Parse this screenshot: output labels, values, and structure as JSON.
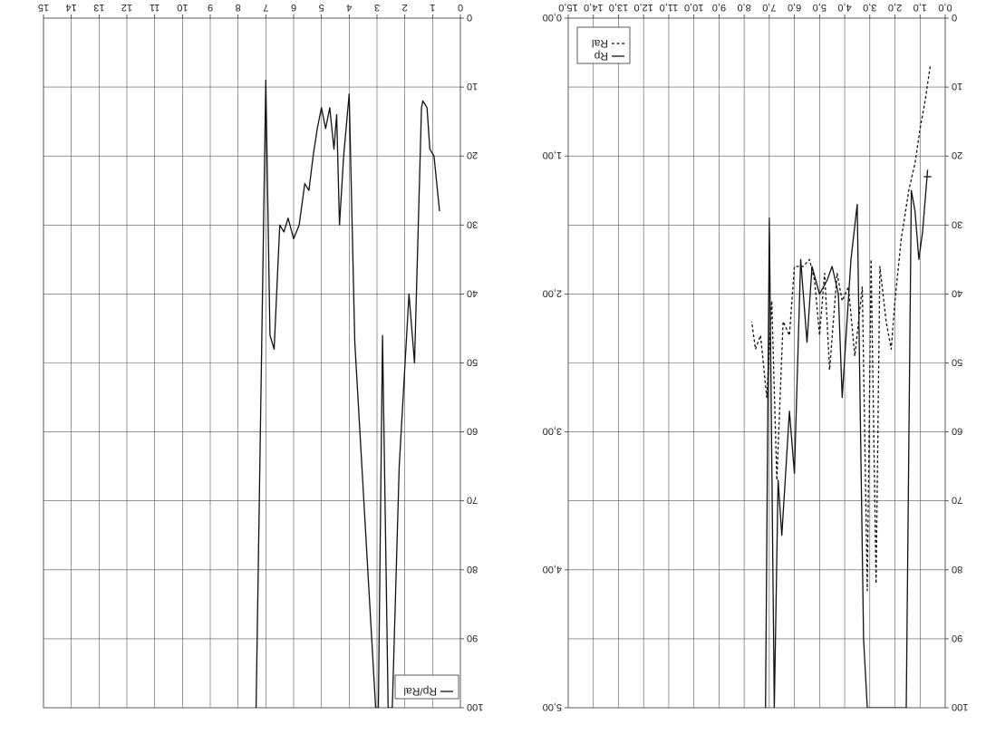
{
  "page": {
    "orientation": "rotated 180 degrees (scanned chart page shown upside-down)"
  },
  "chart_data": [
    {
      "type": "line",
      "title": "",
      "xlabel": "",
      "ylabel": "",
      "x_axis": {
        "range": [
          0,
          15
        ],
        "ticks": [
          0,
          1,
          2,
          3,
          4,
          5,
          6,
          7,
          8,
          9,
          10,
          11,
          12,
          13,
          14,
          15
        ],
        "tick_labels": [
          "0",
          "1",
          "2",
          "3",
          "4",
          "5",
          "6",
          "7",
          "8",
          "9",
          "10",
          "11",
          "12",
          "13",
          "14",
          "15"
        ]
      },
      "y_axis": {
        "range": [
          0,
          100
        ],
        "ticks": [
          0,
          10,
          20,
          30,
          40,
          50,
          60,
          70,
          80,
          90,
          100
        ],
        "tick_labels": [
          "0",
          "10",
          "20",
          "30",
          "40",
          "50",
          "60",
          "70",
          "80",
          "90",
          "100"
        ]
      },
      "grid": true,
      "legend": {
        "entries": [
          "Rp/Ral"
        ],
        "placement": "top-left"
      },
      "series": [
        {
          "name": "Rp/Ral",
          "style": "solid",
          "x": [
            0.75,
            0.95,
            1.1,
            1.2,
            1.35,
            1.4,
            1.65,
            1.85,
            2.2,
            2.45,
            2.6,
            2.8,
            2.95,
            3.05,
            3.8,
            4.0,
            4.2,
            4.35,
            4.45,
            4.55,
            4.7,
            4.85,
            5.0,
            5.15,
            5.3,
            5.45,
            5.6,
            5.8,
            6.0,
            6.2,
            6.35,
            6.5,
            6.7,
            6.85,
            7.0,
            7.35
          ],
          "y": [
            28,
            20,
            19,
            13,
            12,
            13,
            50,
            40,
            65,
            100,
            100,
            46,
            100,
            100,
            47,
            11,
            20,
            30,
            14,
            19,
            13,
            16,
            13,
            16,
            20,
            25,
            24,
            30,
            32,
            29,
            31,
            30,
            48,
            46,
            9,
            100
          ]
        }
      ]
    },
    {
      "type": "line",
      "title": "",
      "xlabel": "",
      "ylabel": "",
      "x_axis": {
        "range": [
          0,
          15
        ],
        "ticks": [
          0,
          1,
          2,
          3,
          4,
          5,
          6,
          7,
          8,
          9,
          10,
          11,
          12,
          13,
          14,
          15
        ],
        "tick_labels": [
          "0,0",
          "1,0",
          "2,0",
          "3,0",
          "4,0",
          "5,0",
          "6,0",
          "7,0",
          "8,0",
          "9,0",
          "10,0",
          "11,0",
          "12,0",
          "13,0",
          "14,0",
          "15,0"
        ]
      },
      "y_axis_left": {
        "range": [
          0,
          100
        ],
        "ticks": [
          0,
          10,
          20,
          30,
          40,
          50,
          60,
          70,
          80,
          90,
          100
        ],
        "tick_labels": [
          "0",
          "10",
          "20",
          "30",
          "40",
          "50",
          "60",
          "70",
          "80",
          "90",
          "100"
        ]
      },
      "y_axis_right": {
        "range": [
          0,
          5
        ],
        "ticks": [
          0,
          1,
          2,
          3,
          4,
          5
        ],
        "tick_labels": [
          "0,00",
          "1,00",
          "2,00",
          "3,00",
          "4,00",
          "5,00"
        ]
      },
      "grid": true,
      "legend": {
        "entries": [
          "Rp",
          "Ral"
        ],
        "placement": "bottom-right"
      },
      "series": [
        {
          "name": "Rp",
          "style": "solid",
          "axis": "left",
          "x": [
            0.7,
            0.9,
            1.05,
            1.2,
            1.35,
            1.55,
            3.1,
            3.25,
            3.5,
            3.75,
            4.1,
            4.25,
            4.5,
            4.7,
            5.0,
            5.3,
            5.5,
            5.75,
            6.0,
            6.2,
            6.5,
            6.65,
            6.8,
            7.0,
            7.15
          ],
          "y": [
            22,
            31,
            35,
            28,
            25,
            100,
            100,
            90,
            27,
            35,
            55,
            40,
            36,
            38,
            40,
            36,
            47,
            35,
            66,
            57,
            75,
            67,
            100,
            29,
            100
          ]
        },
        {
          "name": "Ral",
          "style": "dashed",
          "axis": "right",
          "x": [
            0.6,
            0.8,
            1.0,
            1.2,
            1.45,
            1.75,
            2.0,
            2.15,
            2.35,
            2.6,
            2.75,
            2.95,
            3.1,
            3.3,
            3.6,
            3.85,
            4.1,
            4.3,
            4.6,
            4.8,
            5.0,
            5.2,
            5.4,
            5.65,
            6.0,
            6.2,
            6.45,
            6.7,
            6.9,
            7.1,
            7.35,
            7.55,
            7.7
          ],
          "y": [
            0.35,
            0.6,
            0.8,
            1.05,
            1.25,
            1.6,
            2.05,
            2.4,
            2.2,
            1.8,
            4.1,
            1.75,
            4.15,
            1.95,
            2.45,
            1.95,
            2.05,
            1.85,
            2.55,
            1.85,
            2.3,
            1.9,
            1.75,
            1.8,
            1.8,
            2.3,
            2.2,
            3.35,
            2.05,
            2.75,
            2.3,
            2.4,
            2.2
          ]
        },
        {
          "name": "",
          "style": "solid",
          "axis": "left",
          "x": [
            0.55,
            0.85
          ],
          "y": [
            23,
            23
          ]
        }
      ]
    }
  ]
}
